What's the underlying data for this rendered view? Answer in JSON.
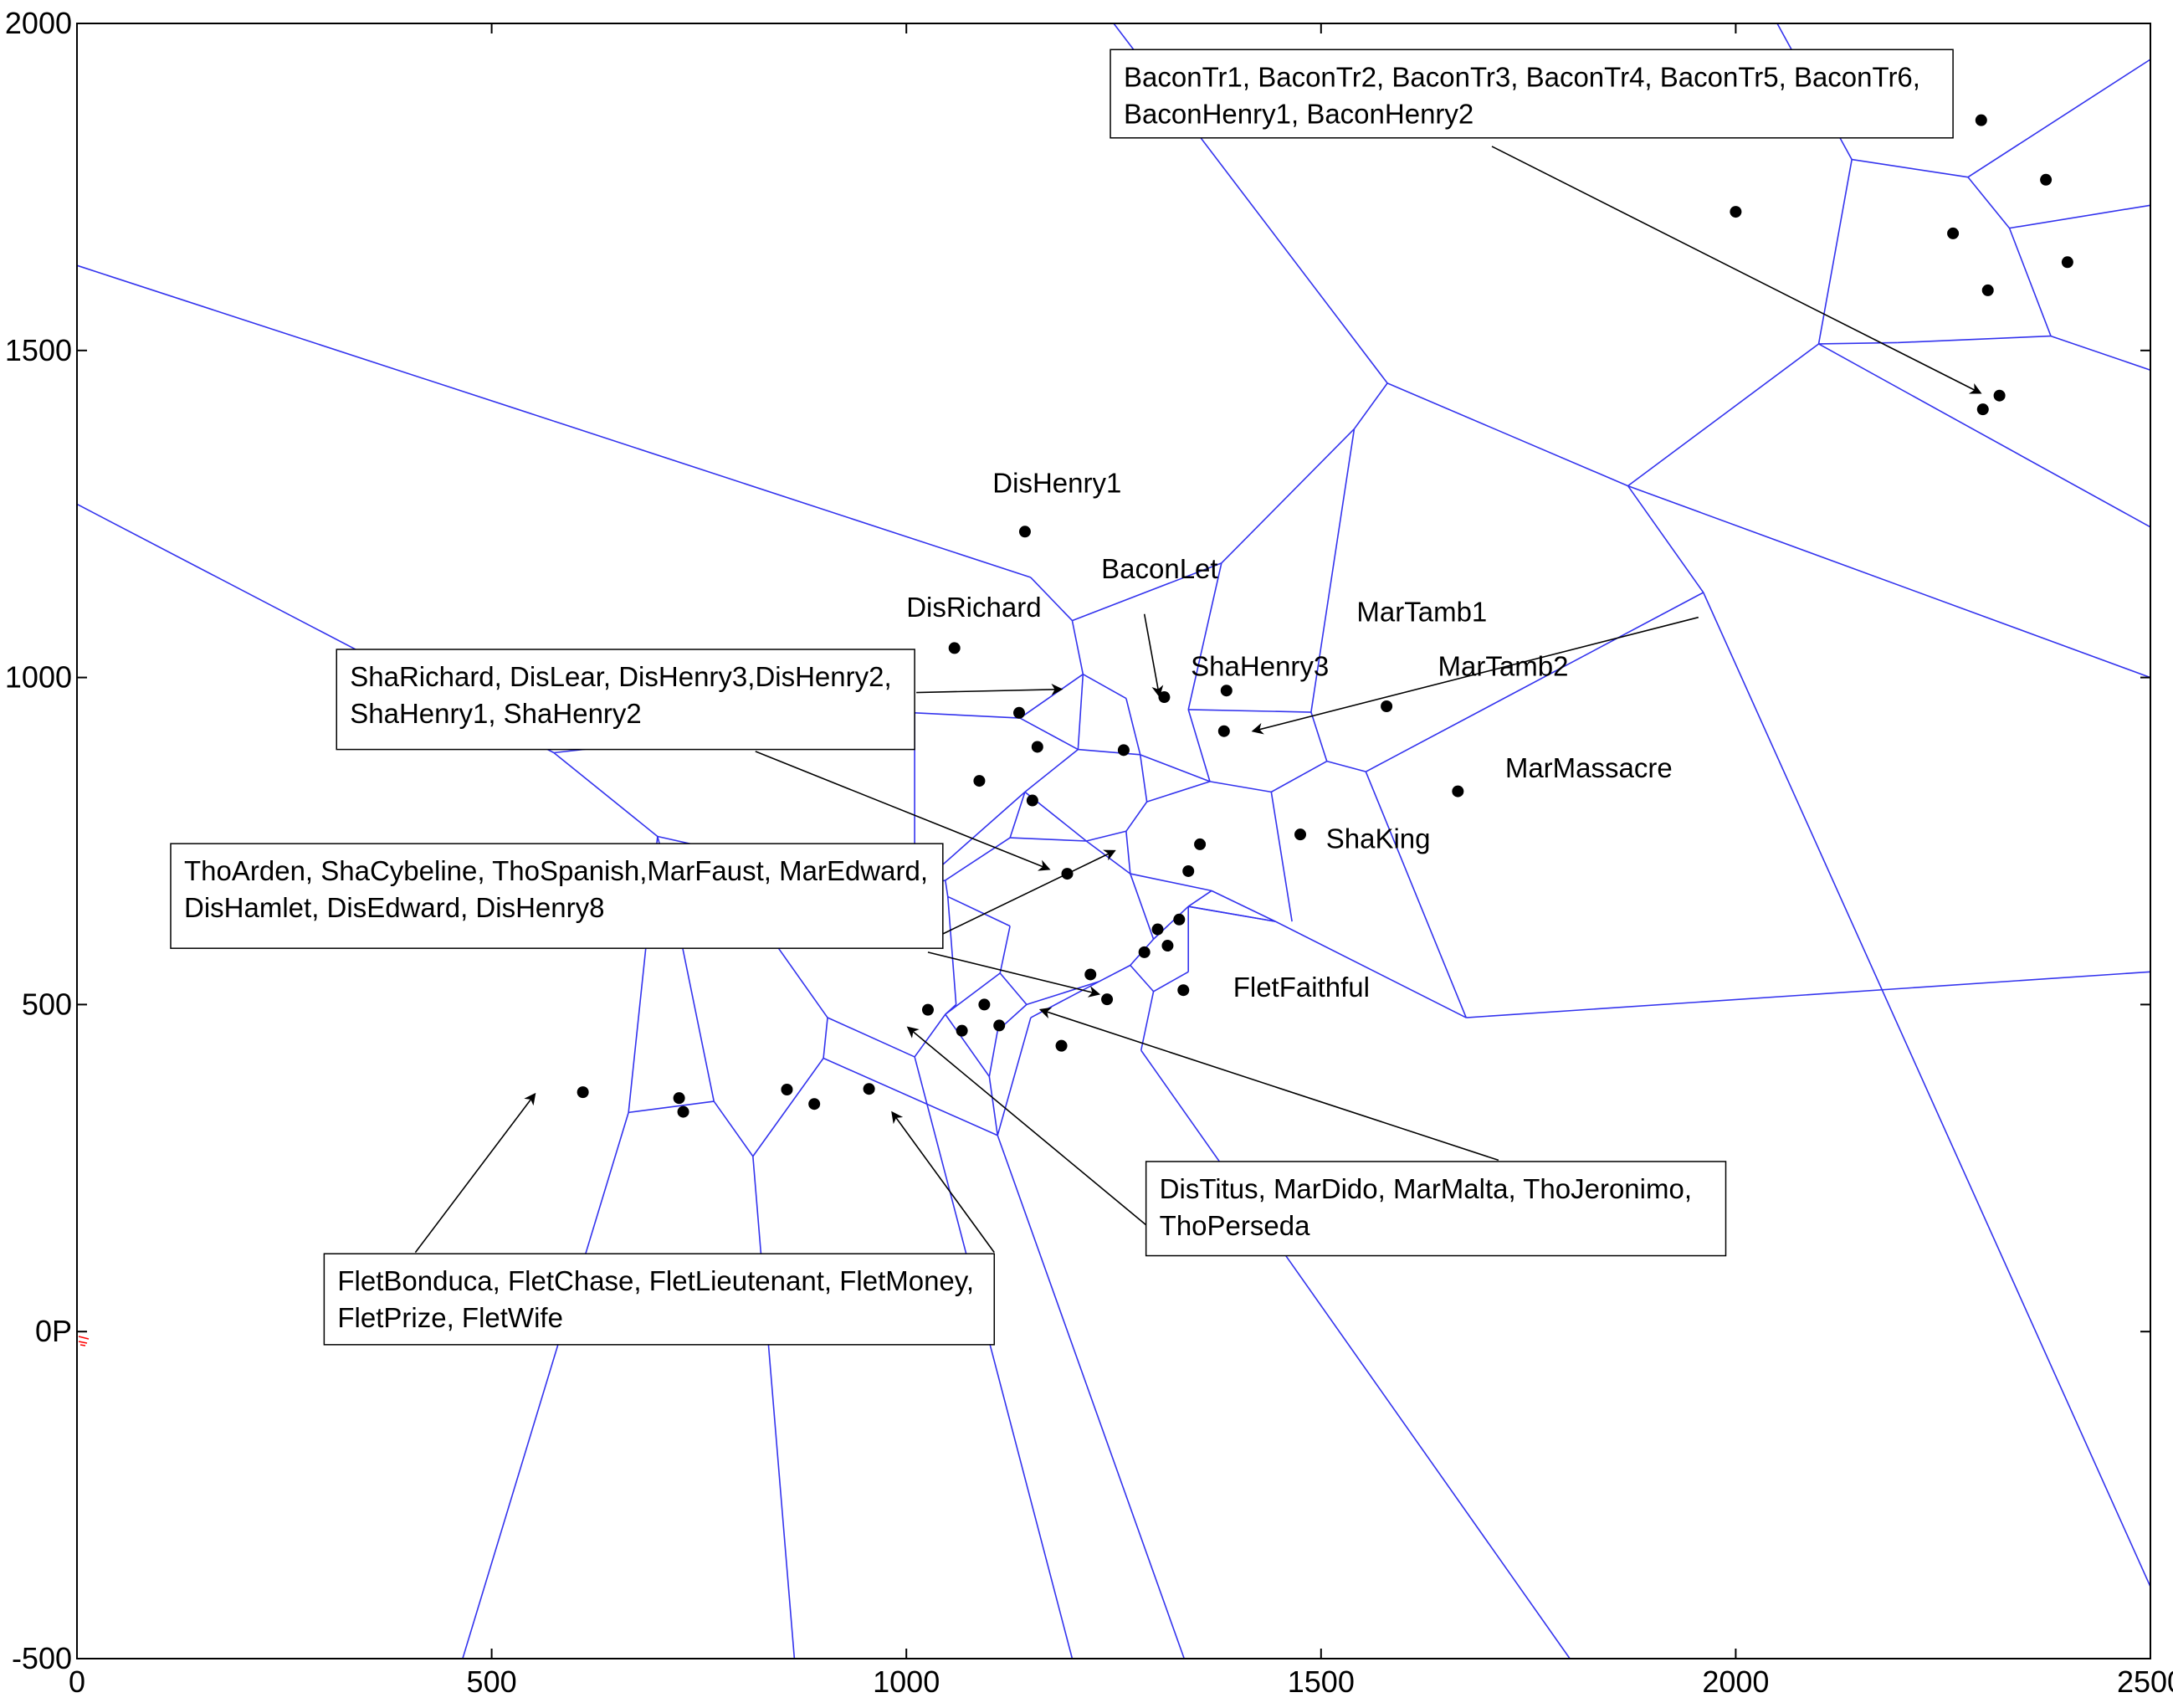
{
  "chart_data": {
    "type": "scatter",
    "title": "",
    "xlabel": "",
    "ylabel": "",
    "xlim": [
      0,
      2500
    ],
    "ylim": [
      -500,
      2000
    ],
    "grid": false,
    "x_ticks": [
      0,
      500,
      1000,
      1500,
      2000,
      2500
    ],
    "y_ticks": [
      -500,
      0,
      500,
      1000,
      1500,
      2000
    ],
    "x_tick_labels": [
      "0",
      "500",
      "1000",
      "1500",
      "2000",
      "2500"
    ],
    "y_tick_labels": [
      "-500",
      "0P",
      "500",
      "1000",
      "1500",
      "2000"
    ],
    "colors": {
      "edges": "#3333ee",
      "points": "#000000",
      "frame": "#000000",
      "origin_marker": "#ff0000"
    },
    "points": [
      [
        1143,
        1223
      ],
      [
        1058,
        1045
      ],
      [
        1311,
        970
      ],
      [
        1386,
        980
      ],
      [
        1383,
        918
      ],
      [
        1136,
        946
      ],
      [
        1158,
        894
      ],
      [
        1262,
        889
      ],
      [
        1088,
        842
      ],
      [
        1152,
        812
      ],
      [
        1475,
        760
      ],
      [
        1354,
        745
      ],
      [
        1340,
        704
      ],
      [
        1194,
        700
      ],
      [
        1579,
        956
      ],
      [
        1665,
        826
      ],
      [
        1303,
        615
      ],
      [
        1329,
        630
      ],
      [
        1287,
        580
      ],
      [
        1315,
        590
      ],
      [
        1222,
        546
      ],
      [
        1242,
        508
      ],
      [
        1334,
        522
      ],
      [
        1026,
        492
      ],
      [
        1094,
        500
      ],
      [
        1067,
        460
      ],
      [
        1112,
        468
      ],
      [
        1187,
        437
      ],
      [
        610,
        366
      ],
      [
        726,
        357
      ],
      [
        731,
        336
      ],
      [
        856,
        370
      ],
      [
        889,
        348
      ],
      [
        955,
        371
      ],
      [
        2000,
        1712
      ],
      [
        2296,
        1852
      ],
      [
        2374,
        1761
      ],
      [
        2262,
        1679
      ],
      [
        2400,
        1635
      ],
      [
        2304,
        1592
      ],
      [
        2318,
        1431
      ],
      [
        2298,
        1410
      ]
    ],
    "voronoi_edges": [
      [
        [
          0,
          1630
        ],
        [
          575,
          1392
        ]
      ],
      [
        [
          575,
          1392
        ],
        [
          1150,
          1153
        ]
      ],
      [
        [
          1150,
          1153
        ],
        [
          1200,
          1087
        ]
      ],
      [
        [
          1200,
          1087
        ],
        [
          1380,
          1175
        ]
      ],
      [
        [
          1380,
          1175
        ],
        [
          1540,
          1380
        ]
      ],
      [
        [
          1540,
          1380
        ],
        [
          1580,
          1450
        ]
      ],
      [
        [
          1250,
          2000
        ],
        [
          1580,
          1450
        ]
      ],
      [
        [
          1580,
          1450
        ],
        [
          1870,
          1293
        ]
      ],
      [
        [
          1870,
          1293
        ],
        [
          2100,
          1510
        ]
      ],
      [
        [
          2100,
          1510
        ],
        [
          2140,
          1792
        ]
      ],
      [
        [
          2140,
          1792
        ],
        [
          2050,
          2000
        ]
      ],
      [
        [
          2140,
          1792
        ],
        [
          2280,
          1765
        ]
      ],
      [
        [
          2280,
          1765
        ],
        [
          2500,
          1945
        ]
      ],
      [
        [
          2280,
          1765
        ],
        [
          2330,
          1687
        ]
      ],
      [
        [
          2330,
          1687
        ],
        [
          2500,
          1722
        ]
      ],
      [
        [
          2330,
          1687
        ],
        [
          2380,
          1522
        ]
      ],
      [
        [
          2380,
          1522
        ],
        [
          2500,
          1470
        ]
      ],
      [
        [
          2380,
          1522
        ],
        [
          2195,
          1512
        ]
      ],
      [
        [
          2195,
          1512
        ],
        [
          2100,
          1510
        ]
      ],
      [
        [
          2100,
          1510
        ],
        [
          2500,
          1230
        ]
      ],
      [
        [
          1870,
          1293
        ],
        [
          2500,
          1000
        ]
      ],
      [
        [
          1540,
          1380
        ],
        [
          1488,
          947
        ]
      ],
      [
        [
          1200,
          1087
        ],
        [
          1213,
          1005
        ]
      ],
      [
        [
          1213,
          1005
        ],
        [
          1137,
          938
        ]
      ],
      [
        [
          1137,
          938
        ],
        [
          1010,
          946
        ]
      ],
      [
        [
          1010,
          946
        ],
        [
          575,
          885
        ]
      ],
      [
        [
          0,
          1265
        ],
        [
          575,
          885
        ]
      ],
      [
        [
          575,
          885
        ],
        [
          700,
          757
        ]
      ],
      [
        [
          700,
          757
        ],
        [
          760,
          740
        ]
      ],
      [
        [
          760,
          740
        ],
        [
          1010,
          676
        ]
      ],
      [
        [
          1010,
          946
        ],
        [
          1010,
          676
        ]
      ],
      [
        [
          1213,
          1005
        ],
        [
          1265,
          968
        ]
      ],
      [
        [
          1265,
          968
        ],
        [
          1282,
          882
        ]
      ],
      [
        [
          1282,
          882
        ],
        [
          1366,
          841
        ]
      ],
      [
        [
          1366,
          841
        ],
        [
          1340,
          951
        ]
      ],
      [
        [
          1340,
          951
        ],
        [
          1380,
          1175
        ]
      ],
      [
        [
          1340,
          951
        ],
        [
          1488,
          947
        ]
      ],
      [
        [
          1488,
          947
        ],
        [
          1507,
          872
        ]
      ],
      [
        [
          1507,
          872
        ],
        [
          1554,
          856
        ]
      ],
      [
        [
          1554,
          856
        ],
        [
          1961,
          1130
        ]
      ],
      [
        [
          1554,
          856
        ],
        [
          1675,
          480
        ]
      ],
      [
        [
          1675,
          480
        ],
        [
          2500,
          550
        ]
      ],
      [
        [
          1675,
          480
        ],
        [
          1445,
          627
        ]
      ],
      [
        [
          1507,
          872
        ],
        [
          1440,
          825
        ]
      ],
      [
        [
          1440,
          825
        ],
        [
          1366,
          841
        ]
      ],
      [
        [
          1440,
          825
        ],
        [
          1465,
          627
        ]
      ],
      [
        [
          1445,
          627
        ],
        [
          1368,
          674
        ]
      ],
      [
        [
          1445,
          627
        ],
        [
          1340,
          650
        ]
      ],
      [
        [
          1368,
          674
        ],
        [
          1270,
          700
        ]
      ],
      [
        [
          1270,
          700
        ],
        [
          1217,
          750
        ]
      ],
      [
        [
          1270,
          700
        ],
        [
          1265,
          765
        ]
      ],
      [
        [
          1265,
          765
        ],
        [
          1290,
          810
        ]
      ],
      [
        [
          1290,
          810
        ],
        [
          1366,
          841
        ]
      ],
      [
        [
          1282,
          882
        ],
        [
          1290,
          810
        ]
      ],
      [
        [
          1213,
          1005
        ],
        [
          1207,
          890
        ]
      ],
      [
        [
          1207,
          890
        ],
        [
          1137,
          938
        ]
      ],
      [
        [
          1207,
          890
        ],
        [
          1282,
          882
        ]
      ],
      [
        [
          1207,
          890
        ],
        [
          1143,
          825
        ]
      ],
      [
        [
          1143,
          825
        ],
        [
          1010,
          676
        ]
      ],
      [
        [
          1143,
          825
        ],
        [
          1125,
          755
        ]
      ],
      [
        [
          1125,
          755
        ],
        [
          1217,
          750
        ]
      ],
      [
        [
          1125,
          755
        ],
        [
          1047,
          690
        ]
      ],
      [
        [
          1047,
          690
        ],
        [
          1010,
          676
        ]
      ],
      [
        [
          1047,
          690
        ],
        [
          1050,
          665
        ]
      ],
      [
        [
          1050,
          665
        ],
        [
          1125,
          620
        ]
      ],
      [
        [
          1125,
          620
        ],
        [
          1113,
          548
        ]
      ],
      [
        [
          1113,
          548
        ],
        [
          1047,
          485
        ]
      ],
      [
        [
          1050,
          665
        ],
        [
          1060,
          500
        ]
      ],
      [
        [
          1060,
          500
        ],
        [
          1047,
          485
        ]
      ],
      [
        [
          1113,
          548
        ],
        [
          1145,
          500
        ]
      ],
      [
        [
          1145,
          500
        ],
        [
          1232,
          535
        ]
      ],
      [
        [
          1232,
          535
        ],
        [
          1270,
          560
        ]
      ],
      [
        [
          1270,
          560
        ],
        [
          1298,
          520
        ]
      ],
      [
        [
          1298,
          520
        ],
        [
          1340,
          550
        ]
      ],
      [
        [
          1340,
          550
        ],
        [
          1340,
          650
        ]
      ],
      [
        [
          1298,
          520
        ],
        [
          1283,
          430
        ]
      ],
      [
        [
          1283,
          430
        ],
        [
          1800,
          -500
        ]
      ],
      [
        [
          1232,
          535
        ],
        [
          1150,
          480
        ]
      ],
      [
        [
          1150,
          480
        ],
        [
          1110,
          300
        ]
      ],
      [
        [
          1110,
          300
        ],
        [
          1335,
          -500
        ]
      ],
      [
        [
          1145,
          500
        ],
        [
          1110,
          460
        ]
      ],
      [
        [
          1110,
          460
        ],
        [
          1100,
          390
        ]
      ],
      [
        [
          1100,
          390
        ],
        [
          1047,
          485
        ]
      ],
      [
        [
          1100,
          390
        ],
        [
          1110,
          300
        ]
      ],
      [
        [
          1047,
          485
        ],
        [
          1010,
          420
        ]
      ],
      [
        [
          1010,
          420
        ],
        [
          905,
          480
        ]
      ],
      [
        [
          905,
          480
        ],
        [
          760,
          740
        ]
      ],
      [
        [
          1010,
          420
        ],
        [
          1200,
          -500
        ]
      ],
      [
        [
          905,
          480
        ],
        [
          900,
          418
        ]
      ],
      [
        [
          900,
          418
        ],
        [
          815,
          268
        ]
      ],
      [
        [
          815,
          268
        ],
        [
          768,
          352
        ]
      ],
      [
        [
          768,
          352
        ],
        [
          712,
          700
        ]
      ],
      [
        [
          712,
          700
        ],
        [
          700,
          757
        ]
      ],
      [
        [
          712,
          700
        ],
        [
          760,
          740
        ]
      ],
      [
        [
          768,
          352
        ],
        [
          665,
          335
        ]
      ],
      [
        [
          665,
          335
        ],
        [
          700,
          757
        ]
      ],
      [
        [
          665,
          335
        ],
        [
          465,
          -500
        ]
      ],
      [
        [
          815,
          268
        ],
        [
          865,
          -500
        ]
      ],
      [
        [
          900,
          418
        ],
        [
          1110,
          300
        ]
      ],
      [
        [
          1143,
          825
        ],
        [
          1217,
          750
        ]
      ],
      [
        [
          1217,
          750
        ],
        [
          1265,
          765
        ]
      ],
      [
        [
          1340,
          650
        ],
        [
          1445,
          627
        ]
      ],
      [
        [
          1340,
          650
        ],
        [
          1368,
          674
        ]
      ],
      [
        [
          1270,
          560
        ],
        [
          1298,
          600
        ]
      ],
      [
        [
          1298,
          600
        ],
        [
          1340,
          650
        ]
      ],
      [
        [
          1298,
          600
        ],
        [
          1270,
          700
        ]
      ],
      [
        [
          2500,
          -390
        ],
        [
          1961,
          1130
        ]
      ],
      [
        [
          1961,
          1130
        ],
        [
          1870,
          1293
        ]
      ]
    ],
    "point_labels": [
      {
        "text": "DisHenry1",
        "x": 1104,
        "y": 1283
      },
      {
        "text": "BaconLet",
        "x": 1235,
        "y": 1152
      },
      {
        "text": "DisRichard",
        "x": 1000,
        "y": 1093
      },
      {
        "text": "MarTamb1",
        "x": 1543,
        "y": 1086
      },
      {
        "text": "ShaHenry3",
        "x": 1343,
        "y": 1003
      },
      {
        "text": "MarTamb2",
        "x": 1641,
        "y": 1003
      },
      {
        "text": "MarMassacre",
        "x": 1722,
        "y": 847
      },
      {
        "text": "ShaKing",
        "x": 1506,
        "y": 739
      },
      {
        "text": "FletFaithful",
        "x": 1394,
        "y": 512
      }
    ],
    "annotation_boxes": [
      {
        "lines": [
          "BaconTr1, BaconTr2, BaconTr3, BaconTr4, BaconTr5, BaconTr6,",
          "BaconHenry1, BaconHenry2"
        ],
        "x0": 1246,
        "y0": 1960,
        "x1": 2262,
        "y1": 1825
      },
      {
        "lines": [
          "ShaRichard, DisLear, DisHenry3,DisHenry2,",
          "ShaHenry1, ShaHenry2"
        ],
        "x0": 313,
        "y0": 1043,
        "x1": 1010,
        "y1": 890
      },
      {
        "lines": [
          "ThoArden, ShaCybeline, ThoSpanish,MarFaust, MarEdward,",
          "DisHamlet, DisEdward, DisHenry8"
        ],
        "x0": 113,
        "y0": 746,
        "x1": 1044,
        "y1": 586
      },
      {
        "lines": [
          "DisTitus, MarDido, MarMalta, ThoJeronimo,",
          "ThoPerseda"
        ],
        "x0": 1289,
        "y0": 260,
        "x1": 1988,
        "y1": 116
      },
      {
        "lines": [
          "FletBonduca, FletChase, FletLieutenant, FletMoney,",
          "FletPrize, FletWife"
        ],
        "x0": 298,
        "y0": 119,
        "x1": 1106,
        "y1": -20
      }
    ],
    "arrows": [
      {
        "from": [
          1706,
          1812
        ],
        "to": [
          2295,
          1435
        ]
      },
      {
        "from": [
          1955,
          1092
        ],
        "to": [
          1418,
          918
        ]
      },
      {
        "from": [
          1287,
          1097
        ],
        "to": [
          1305,
          972
        ]
      },
      {
        "from": [
          1012,
          977
        ],
        "to": [
          1187,
          982
        ]
      },
      {
        "from": [
          818,
          887
        ],
        "to": [
          1172,
          707
        ]
      },
      {
        "from": [
          1044,
          608
        ],
        "to": [
          1251,
          735
        ]
      },
      {
        "from": [
          1026,
          580
        ],
        "to": [
          1232,
          516
        ]
      },
      {
        "from": [
          1714,
          262
        ],
        "to": [
          1162,
          492
        ]
      },
      {
        "from": [
          1289,
          163
        ],
        "to": [
          1002,
          465
        ]
      },
      {
        "from": [
          408,
          121
        ],
        "to": [
          552,
          363
        ]
      },
      {
        "from": [
          1106,
          121
        ],
        "to": [
          983,
          335
        ]
      }
    ]
  }
}
